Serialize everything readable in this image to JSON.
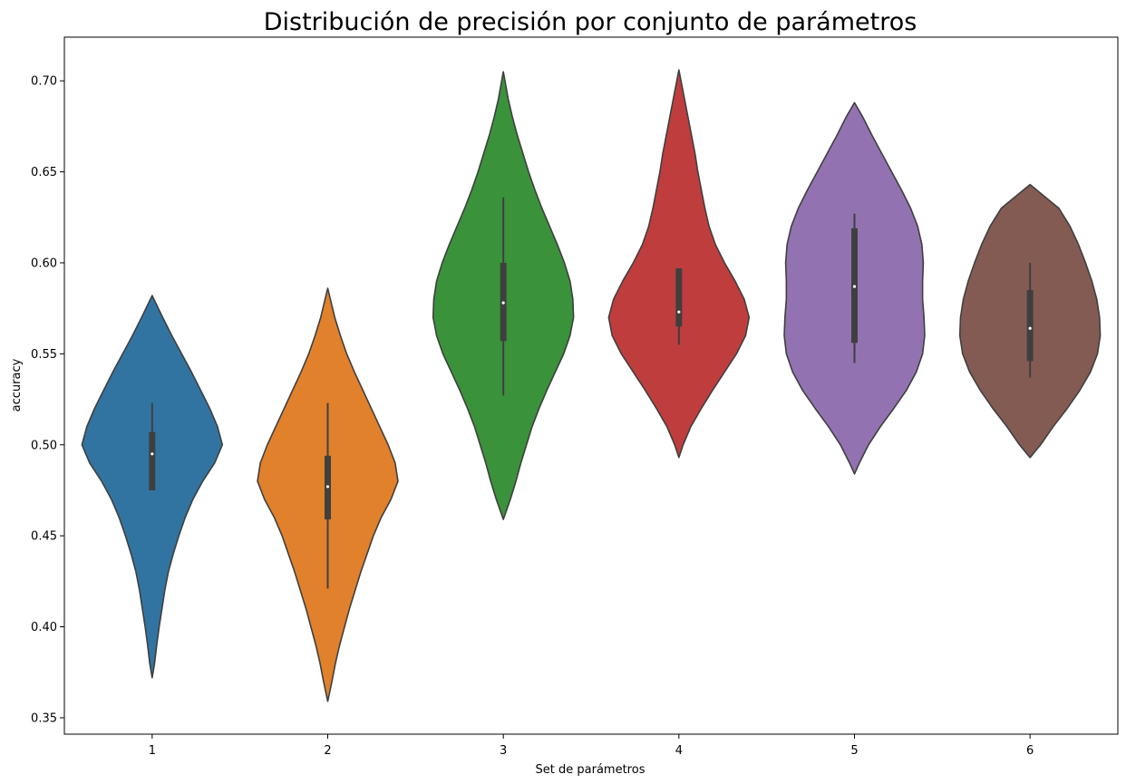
{
  "chart_data": {
    "type": "violin",
    "title": "Distribución de precisión por conjunto de parámetros",
    "xlabel": "Set de parámetros",
    "ylabel": "accuracy",
    "ylim": [
      0.341,
      0.724
    ],
    "yticks": [
      "0.35",
      "0.40",
      "0.45",
      "0.50",
      "0.55",
      "0.60",
      "0.65",
      "0.70"
    ],
    "grid": false,
    "legend": "none",
    "categories": [
      "1",
      "2",
      "3",
      "4",
      "5",
      "6"
    ],
    "series": [
      {
        "category": "1",
        "color": "#3274a1",
        "min": 0.372,
        "max": 0.582,
        "whisker_low": 0.475,
        "whisker_high": 0.523,
        "q1": 0.475,
        "median": 0.495,
        "q3": 0.507,
        "profile": [
          [
            0.372,
            0.0
          ],
          [
            0.38,
            0.035
          ],
          [
            0.39,
            0.065
          ],
          [
            0.4,
            0.1
          ],
          [
            0.41,
            0.14
          ],
          [
            0.42,
            0.18
          ],
          [
            0.43,
            0.23
          ],
          [
            0.44,
            0.3
          ],
          [
            0.45,
            0.38
          ],
          [
            0.46,
            0.47
          ],
          [
            0.47,
            0.58
          ],
          [
            0.48,
            0.72
          ],
          [
            0.49,
            0.89
          ],
          [
            0.5,
            1.0
          ],
          [
            0.51,
            0.93
          ],
          [
            0.52,
            0.82
          ],
          [
            0.53,
            0.69
          ],
          [
            0.54,
            0.56
          ],
          [
            0.55,
            0.42
          ],
          [
            0.56,
            0.28
          ],
          [
            0.57,
            0.15
          ],
          [
            0.582,
            0.0
          ]
        ]
      },
      {
        "category": "2",
        "color": "#e1812c",
        "min": 0.359,
        "max": 0.586,
        "whisker_low": 0.421,
        "whisker_high": 0.523,
        "q1": 0.459,
        "median": 0.477,
        "q3": 0.494,
        "profile": [
          [
            0.359,
            0.0
          ],
          [
            0.37,
            0.06
          ],
          [
            0.38,
            0.11
          ],
          [
            0.39,
            0.17
          ],
          [
            0.4,
            0.24
          ],
          [
            0.41,
            0.31
          ],
          [
            0.42,
            0.39
          ],
          [
            0.43,
            0.47
          ],
          [
            0.44,
            0.56
          ],
          [
            0.45,
            0.65
          ],
          [
            0.46,
            0.76
          ],
          [
            0.47,
            0.9
          ],
          [
            0.48,
            1.0
          ],
          [
            0.49,
            0.96
          ],
          [
            0.5,
            0.86
          ],
          [
            0.51,
            0.74
          ],
          [
            0.52,
            0.62
          ],
          [
            0.53,
            0.5
          ],
          [
            0.54,
            0.38
          ],
          [
            0.55,
            0.27
          ],
          [
            0.56,
            0.18
          ],
          [
            0.57,
            0.1
          ],
          [
            0.586,
            0.0
          ]
        ]
      },
      {
        "category": "3",
        "color": "#3a923a",
        "min": 0.459,
        "max": 0.705,
        "whisker_low": 0.527,
        "whisker_high": 0.636,
        "q1": 0.557,
        "median": 0.578,
        "q3": 0.6,
        "profile": [
          [
            0.459,
            0.0
          ],
          [
            0.47,
            0.1
          ],
          [
            0.48,
            0.18
          ],
          [
            0.49,
            0.25
          ],
          [
            0.5,
            0.33
          ],
          [
            0.51,
            0.41
          ],
          [
            0.52,
            0.51
          ],
          [
            0.53,
            0.62
          ],
          [
            0.54,
            0.74
          ],
          [
            0.55,
            0.86
          ],
          [
            0.56,
            0.95
          ],
          [
            0.57,
            1.0
          ],
          [
            0.58,
            0.99
          ],
          [
            0.59,
            0.95
          ],
          [
            0.6,
            0.87
          ],
          [
            0.61,
            0.77
          ],
          [
            0.62,
            0.66
          ],
          [
            0.63,
            0.55
          ],
          [
            0.64,
            0.45
          ],
          [
            0.65,
            0.36
          ],
          [
            0.66,
            0.28
          ],
          [
            0.67,
            0.2
          ],
          [
            0.68,
            0.13
          ],
          [
            0.69,
            0.07
          ],
          [
            0.705,
            0.0
          ]
        ]
      },
      {
        "category": "4",
        "color": "#c03d3e",
        "min": 0.493,
        "max": 0.706,
        "whisker_low": 0.555,
        "whisker_high": 0.597,
        "q1": 0.565,
        "median": 0.573,
        "q3": 0.597,
        "profile": [
          [
            0.493,
            0.0
          ],
          [
            0.5,
            0.06
          ],
          [
            0.51,
            0.17
          ],
          [
            0.52,
            0.32
          ],
          [
            0.53,
            0.48
          ],
          [
            0.54,
            0.65
          ],
          [
            0.55,
            0.82
          ],
          [
            0.56,
            0.95
          ],
          [
            0.57,
            1.0
          ],
          [
            0.58,
            0.93
          ],
          [
            0.59,
            0.8
          ],
          [
            0.6,
            0.65
          ],
          [
            0.61,
            0.52
          ],
          [
            0.62,
            0.43
          ],
          [
            0.63,
            0.37
          ],
          [
            0.64,
            0.32
          ],
          [
            0.65,
            0.27
          ],
          [
            0.66,
            0.23
          ],
          [
            0.67,
            0.18
          ],
          [
            0.68,
            0.13
          ],
          [
            0.69,
            0.08
          ],
          [
            0.706,
            0.0
          ]
        ]
      },
      {
        "category": "5",
        "color": "#9372b2",
        "min": 0.484,
        "max": 0.688,
        "whisker_low": 0.545,
        "whisker_high": 0.627,
        "q1": 0.556,
        "median": 0.587,
        "q3": 0.619,
        "profile": [
          [
            0.484,
            0.0
          ],
          [
            0.49,
            0.07
          ],
          [
            0.5,
            0.2
          ],
          [
            0.51,
            0.37
          ],
          [
            0.52,
            0.56
          ],
          [
            0.53,
            0.74
          ],
          [
            0.54,
            0.88
          ],
          [
            0.55,
            0.97
          ],
          [
            0.56,
            1.0
          ],
          [
            0.57,
            0.99
          ],
          [
            0.58,
            0.97
          ],
          [
            0.59,
            0.97
          ],
          [
            0.6,
            0.98
          ],
          [
            0.61,
            0.96
          ],
          [
            0.62,
            0.9
          ],
          [
            0.63,
            0.8
          ],
          [
            0.64,
            0.67
          ],
          [
            0.65,
            0.53
          ],
          [
            0.66,
            0.39
          ],
          [
            0.67,
            0.25
          ],
          [
            0.68,
            0.12
          ],
          [
            0.688,
            0.0
          ]
        ]
      },
      {
        "category": "6",
        "color": "#845b53",
        "min": 0.493,
        "max": 0.643,
        "whisker_low": 0.537,
        "whisker_high": 0.6,
        "q1": 0.546,
        "median": 0.564,
        "q3": 0.585,
        "profile": [
          [
            0.493,
            0.0
          ],
          [
            0.5,
            0.15
          ],
          [
            0.51,
            0.33
          ],
          [
            0.52,
            0.53
          ],
          [
            0.53,
            0.71
          ],
          [
            0.54,
            0.86
          ],
          [
            0.55,
            0.96
          ],
          [
            0.56,
            1.0
          ],
          [
            0.57,
            0.99
          ],
          [
            0.58,
            0.95
          ],
          [
            0.59,
            0.88
          ],
          [
            0.6,
            0.79
          ],
          [
            0.61,
            0.69
          ],
          [
            0.62,
            0.57
          ],
          [
            0.63,
            0.41
          ],
          [
            0.643,
            0.0
          ]
        ]
      }
    ]
  }
}
